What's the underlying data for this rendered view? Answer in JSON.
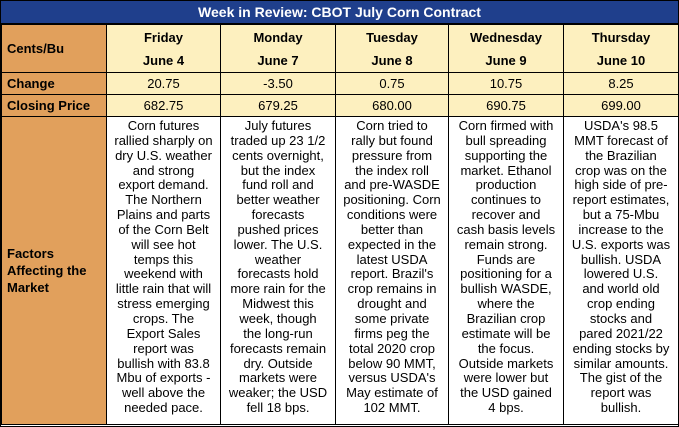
{
  "title": "Week in Review: CBOT July Corn Contract",
  "row_labels": {
    "units": "Cents/Bu",
    "change": "Change",
    "closing": "Closing Price",
    "factors": [
      "Factors",
      "Affecting the",
      "Market"
    ]
  },
  "days": [
    {
      "day": "Friday",
      "date": "June 4",
      "change": "20.75",
      "close": "682.75",
      "factors": [
        "Corn futures",
        "rallied sharply on",
        "dry U.S. weather",
        "and strong",
        "export demand.",
        "The Northern",
        "Plains and parts",
        "of the Corn Belt",
        "will see hot",
        "temps this",
        "weekend with",
        "little rain that will",
        "stress emerging",
        "crops. The",
        "Export Sales",
        "report was",
        "bullish with 83.8",
        "Mbu of exports -",
        "well above the",
        "needed pace."
      ]
    },
    {
      "day": "Monday",
      "date": "June 7",
      "change": "-3.50",
      "close": "679.25",
      "factors": [
        "July futures",
        "traded up 23 1/2",
        "cents overnight,",
        "but the index",
        "fund roll and",
        "better weather",
        "forecasts",
        "pushed prices",
        "lower. The U.S.",
        "weather",
        "forecasts hold",
        "more rain for the",
        "Midwest this",
        "week, though",
        "the long-run",
        "forecasts remain",
        "dry. Outside",
        "markets were",
        "weaker; the USD",
        "fell 18 bps."
      ]
    },
    {
      "day": "Tuesday",
      "date": "June 8",
      "change": "0.75",
      "close": "680.00",
      "factors": [
        "Corn tried to",
        "rally but found",
        "pressure from",
        "the index roll",
        "and pre-WASDE",
        "positioning. Corn",
        "conditions were",
        "better than",
        "expected in the",
        "latest USDA",
        "report. Brazil's",
        "crop remains in",
        "drought and",
        "some private",
        "firms peg the",
        "total 2020 crop",
        "below 90 MMT,",
        "versus USDA's",
        "May estimate of",
        "102 MMT."
      ]
    },
    {
      "day": "Wednesday",
      "date": "June 9",
      "change": "10.75",
      "close": "690.75",
      "factors": [
        "Corn firmed with",
        "bull spreading",
        "supporting the",
        "market. Ethanol",
        "production",
        "continues to",
        "recover and",
        "cash basis levels",
        "remain strong.",
        "Funds are",
        "positioning for a",
        "bullish WASDE,",
        "where the",
        "Brazilian crop",
        "estimate will be",
        "the focus.",
        "Outside markets",
        "were lower but",
        "the USD gained",
        "4 bps."
      ]
    },
    {
      "day": "Thursday",
      "date": "June 10",
      "change": "8.25",
      "close": "699.00",
      "factors": [
        "USDA's 98.5",
        "MMT forecast of",
        "the Brazilian",
        "crop was on the",
        "high side of pre-",
        "report estimates,",
        "but a 75-Mbu",
        "increase to the",
        "U.S. exports was",
        "bullish. USDA",
        "lowered U.S.",
        "and world old",
        "crop ending",
        "stocks and",
        "pared 2021/22",
        "ending stocks by",
        "similar amounts.",
        "The gist of the",
        "report was",
        "bullish."
      ]
    }
  ]
}
